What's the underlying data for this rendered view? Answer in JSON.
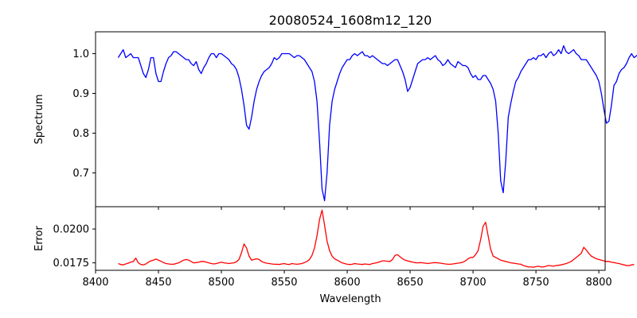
{
  "chart_data": {
    "type": "line",
    "title": "20080524_1608m12_120",
    "xlabel": "Wavelength",
    "xlim": [
      8400,
      8805
    ],
    "x_ticks": [
      8400,
      8450,
      8500,
      8550,
      8600,
      8650,
      8700,
      8750,
      8800
    ],
    "x_tick_labels": [
      "8400",
      "8450",
      "8500",
      "8550",
      "8600",
      "8650",
      "8700",
      "8750",
      "8800"
    ],
    "x_start": 8418,
    "x_step": 2,
    "grid": false,
    "panels": [
      {
        "ylabel": "Spectrum",
        "ylim": [
          0.615,
          1.055
        ],
        "y_ticks": [
          0.7,
          0.8,
          0.9,
          1.0
        ],
        "y_tick_labels": [
          "0.7",
          "0.8",
          "0.9",
          "1.0"
        ],
        "series": [
          {
            "color": "#0000ff",
            "values": [
              0.99,
              1.0,
              1.01,
              0.99,
              0.995,
              1.0,
              0.99,
              0.99,
              0.99,
              0.97,
              0.95,
              0.94,
              0.96,
              0.99,
              0.99,
              0.95,
              0.93,
              0.93,
              0.955,
              0.975,
              0.99,
              0.995,
              1.005,
              1.005,
              1.0,
              0.995,
              0.99,
              0.985,
              0.985,
              0.975,
              0.97,
              0.98,
              0.96,
              0.95,
              0.965,
              0.975,
              0.99,
              1.0,
              1.0,
              0.99,
              1.0,
              1.0,
              0.995,
              0.99,
              0.985,
              0.975,
              0.97,
              0.96,
              0.94,
              0.91,
              0.87,
              0.82,
              0.81,
              0.84,
              0.88,
              0.91,
              0.93,
              0.945,
              0.955,
              0.96,
              0.965,
              0.975,
              0.99,
              0.985,
              0.99,
              1.0,
              1.0,
              1.0,
              1.0,
              0.995,
              0.99,
              0.995,
              0.995,
              0.99,
              0.985,
              0.975,
              0.965,
              0.955,
              0.93,
              0.88,
              0.78,
              0.66,
              0.63,
              0.7,
              0.82,
              0.88,
              0.91,
              0.93,
              0.95,
              0.965,
              0.975,
              0.985,
              0.985,
              0.995,
              1.0,
              0.995,
              1.0,
              1.005,
              0.995,
              0.995,
              0.99,
              0.995,
              0.99,
              0.985,
              0.98,
              0.975,
              0.975,
              0.97,
              0.975,
              0.98,
              0.985,
              0.985,
              0.97,
              0.955,
              0.935,
              0.905,
              0.915,
              0.935,
              0.955,
              0.975,
              0.98,
              0.985,
              0.985,
              0.99,
              0.985,
              0.99,
              0.995,
              0.985,
              0.98,
              0.97,
              0.975,
              0.985,
              0.975,
              0.97,
              0.965,
              0.98,
              0.975,
              0.97,
              0.97,
              0.965,
              0.95,
              0.94,
              0.945,
              0.935,
              0.935,
              0.945,
              0.945,
              0.935,
              0.925,
              0.91,
              0.88,
              0.8,
              0.68,
              0.65,
              0.73,
              0.84,
              0.875,
              0.905,
              0.93,
              0.94,
              0.955,
              0.965,
              0.975,
              0.985,
              0.985,
              0.99,
              0.985,
              0.995,
              0.995,
              1.0,
              0.99,
              1.0,
              1.005,
              0.995,
              1.0,
              1.01,
              1.0,
              1.02,
              1.005,
              1.0,
              1.005,
              1.01,
              1.0,
              0.995,
              0.985,
              0.985,
              0.985,
              0.975,
              0.965,
              0.955,
              0.945,
              0.93,
              0.9,
              0.86,
              0.825,
              0.83,
              0.87,
              0.92,
              0.93,
              0.95,
              0.96,
              0.965,
              0.975,
              0.99,
              1.0,
              0.99,
              0.995,
              1.0,
              0.995,
              0.99,
              1.005
            ]
          }
        ]
      },
      {
        "ylabel": "Error",
        "ylim": [
          0.01695,
          0.02165
        ],
        "y_ticks": [
          0.0175,
          0.02
        ],
        "y_tick_labels": [
          "0.0175",
          "0.0200"
        ],
        "series": [
          {
            "color": "#ff0000",
            "values": [
              0.01745,
              0.01738,
              0.01735,
              0.01742,
              0.01748,
              0.01755,
              0.0176,
              0.01785,
              0.0175,
              0.01738,
              0.01735,
              0.01742,
              0.01755,
              0.01765,
              0.0177,
              0.01778,
              0.0177,
              0.01762,
              0.01752,
              0.01745,
              0.01742,
              0.0174,
              0.0174,
              0.01745,
              0.0175,
              0.0176,
              0.0177,
              0.01775,
              0.0177,
              0.0176,
              0.0175,
              0.01752,
              0.01755,
              0.0176,
              0.0176,
              0.01755,
              0.0175,
              0.01745,
              0.01742,
              0.01745,
              0.0175,
              0.01755,
              0.0175,
              0.01748,
              0.01745,
              0.01748,
              0.0175,
              0.01758,
              0.01775,
              0.01825,
              0.0189,
              0.0186,
              0.018,
              0.0177,
              0.01775,
              0.0178,
              0.01775,
              0.0176,
              0.01752,
              0.01748,
              0.01745,
              0.01742,
              0.0174,
              0.0174,
              0.01738,
              0.01742,
              0.01745,
              0.0174,
              0.01738,
              0.01745,
              0.01742,
              0.0174,
              0.01742,
              0.01745,
              0.01752,
              0.0176,
              0.01775,
              0.01805,
              0.0186,
              0.0195,
              0.0207,
              0.0214,
              0.0203,
              0.0191,
              0.0184,
              0.018,
              0.0178,
              0.0177,
              0.0176,
              0.0175,
              0.01745,
              0.0174,
              0.01738,
              0.0174,
              0.01745,
              0.01742,
              0.0174,
              0.01738,
              0.01742,
              0.0174,
              0.01738,
              0.01745,
              0.01748,
              0.01752,
              0.01758,
              0.01765,
              0.01765,
              0.01762,
              0.0176,
              0.01775,
              0.01805,
              0.0181,
              0.01795,
              0.0178,
              0.0177,
              0.01765,
              0.0176,
              0.01755,
              0.01752,
              0.0175,
              0.01752,
              0.0175,
              0.01748,
              0.01745,
              0.01748,
              0.0175,
              0.01752,
              0.0175,
              0.01748,
              0.01745,
              0.01742,
              0.0174,
              0.0174,
              0.01742,
              0.01745,
              0.01748,
              0.0175,
              0.01755,
              0.01765,
              0.0178,
              0.0179,
              0.0179,
              0.0181,
              0.0184,
              0.0192,
              0.0202,
              0.0205,
              0.0195,
              0.0185,
              0.018,
              0.0179,
              0.0178,
              0.0177,
              0.01765,
              0.0176,
              0.01755,
              0.0175,
              0.01748,
              0.01745,
              0.01742,
              0.0174,
              0.0173,
              0.01725,
              0.0172,
              0.0172,
              0.01718,
              0.01722,
              0.01725,
              0.0172,
              0.0172,
              0.01725,
              0.0173,
              0.01728,
              0.01725,
              0.0173,
              0.01732,
              0.01735,
              0.0174,
              0.01745,
              0.01752,
              0.0176,
              0.01775,
              0.0179,
              0.01805,
              0.0182,
              0.01865,
              0.01845,
              0.0182,
              0.018,
              0.0179,
              0.0178,
              0.01775,
              0.0177,
              0.01765,
              0.0176,
              0.0176,
              0.01755,
              0.01752,
              0.01748,
              0.01745,
              0.0174,
              0.01735,
              0.0173,
              0.0173,
              0.01735,
              0.01738
            ]
          }
        ]
      }
    ]
  }
}
